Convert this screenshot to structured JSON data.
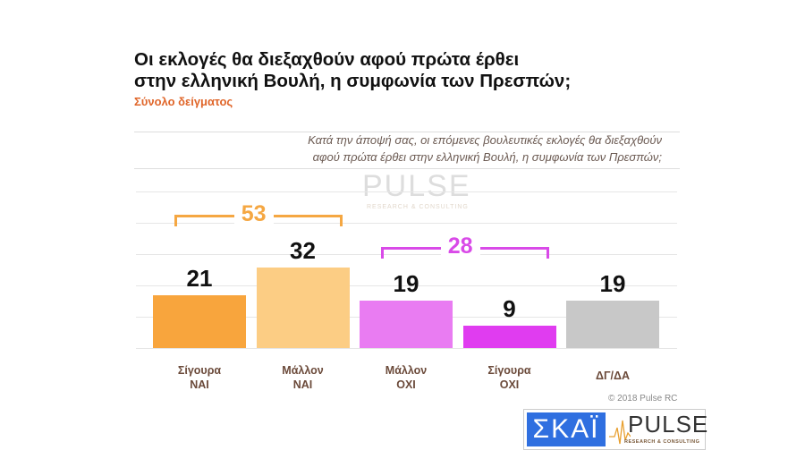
{
  "title_line1": "Οι εκλογές θα διεξαχθούν αφού πρώτα έρθει",
  "title_line2": "στην ελληνική Βουλή, η συμφωνία των Πρεσπών;",
  "subtitle": "Σύνολο δείγματος",
  "question_line1": "Κατά την άποψή σας, οι επόμενες βουλευτικές εκλογές θα διεξαχθούν",
  "question_line2": "αφού πρώτα έρθει στην ελληνική Βουλή, η συμφωνία των Πρεσπών;",
  "copyright": "© 2018 Pulse RC",
  "logos": {
    "skai": "ΣΚΑΪ",
    "pulse": "PULSE",
    "pulse_sub": "RESEARCH & CONSULTING"
  },
  "chart_data": {
    "type": "bar",
    "categories": [
      [
        "Σίγουρα",
        "ΝΑΙ"
      ],
      [
        "Μάλλον",
        "ΝΑΙ"
      ],
      [
        "Μάλλον",
        "ΟΧΙ"
      ],
      [
        "Σίγουρα",
        "ΟΧΙ"
      ],
      [
        "ΔΓ/ΔΑ"
      ]
    ],
    "values": [
      21,
      32,
      19,
      9,
      19
    ],
    "colors": [
      "#f8a53d",
      "#fccd84",
      "#e97cf2",
      "#e03cf0",
      "#c8c8c8"
    ],
    "ylim": [
      0,
      62
    ],
    "grid": true,
    "groups": [
      {
        "label": "53",
        "color": "#f5a742",
        "from": 0,
        "to": 1
      },
      {
        "label": "28",
        "color": "#d94ae8",
        "from": 2,
        "to": 3
      }
    ]
  }
}
